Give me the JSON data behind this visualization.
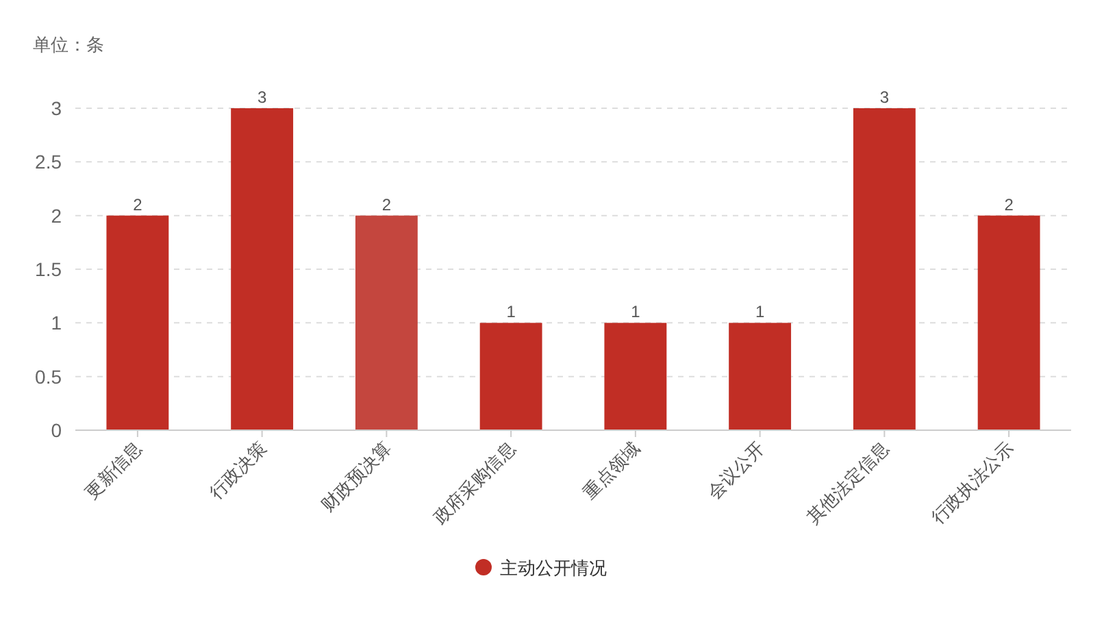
{
  "chart_data": {
    "type": "bar",
    "ylabel": "单位：条",
    "categories": [
      "更新信息",
      "行政决策",
      "财政预决算",
      "政府采购信息",
      "重点领域",
      "会议公开",
      "其他法定信息",
      "行政执法公示"
    ],
    "series": [
      {
        "name": "主动公开情况",
        "color": "#c12e25",
        "colors": [
          "#c12e25",
          "#c12e25",
          "#c4463e",
          "#c12e25",
          "#c12e25",
          "#c12e25",
          "#c12e25",
          "#c12e25"
        ],
        "values": [
          2,
          3,
          2,
          1,
          1,
          1,
          3,
          2
        ]
      }
    ],
    "ylim": [
      0,
      3
    ],
    "yticks": [
      0,
      0.5,
      1,
      1.5,
      2,
      2.5,
      3
    ],
    "grid": "y",
    "legend": "bottom",
    "data_labels": true
  }
}
